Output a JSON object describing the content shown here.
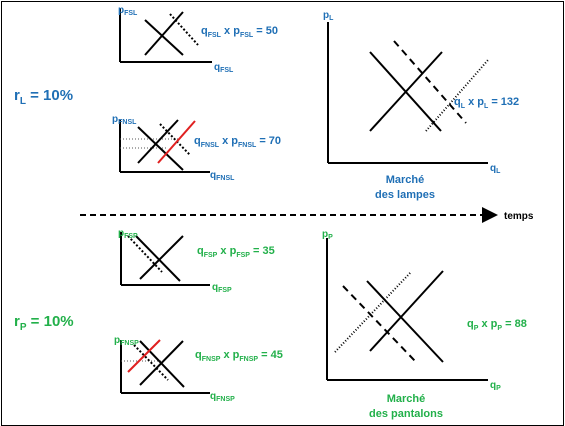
{
  "colors": {
    "blue": "#1f6fb5",
    "green": "#22b04a",
    "red": "#e02020",
    "black": "#000000"
  },
  "lamps": {
    "rate": {
      "sym": "r",
      "sub": "L",
      "rest": " = 10%"
    },
    "fsl": {
      "axis_y": {
        "sym": "p",
        "sub": "FSL"
      },
      "axis_x": {
        "sym": "q",
        "sub": "FSL"
      },
      "product": {
        "a": "q",
        "a_sub": "FSL",
        "mid": " x ",
        "b": "p",
        "b_sub": "FSL",
        "rest": " = 50"
      }
    },
    "fnsl": {
      "axis_y": {
        "sym": "p",
        "sub": "FNSL"
      },
      "axis_x": {
        "sym": "q",
        "sub": "FNSL"
      },
      "product": {
        "a": "q",
        "a_sub": "FNSL",
        "mid": " x ",
        "b": "p",
        "b_sub": "FNSL",
        "rest": " = 70"
      }
    },
    "market": {
      "axis_y": {
        "sym": "p",
        "sub": "L"
      },
      "axis_x": {
        "sym": "q",
        "sub": "L"
      },
      "product": {
        "a": "q",
        "a_sub": "L",
        "mid": " x ",
        "b": "p",
        "b_sub": "L",
        "rest": " = 132"
      },
      "caption_line1": "Marché",
      "caption_line2": "des lampes"
    }
  },
  "timeline": {
    "label": "temps"
  },
  "pants": {
    "rate": {
      "sym": "r",
      "sub": "P",
      "rest": " = 10%"
    },
    "fsp": {
      "axis_y": {
        "sym": "p",
        "sub": "FSP"
      },
      "axis_x": {
        "sym": "q",
        "sub": "FSP"
      },
      "product": {
        "a": "q",
        "a_sub": "FSP",
        "mid": " x ",
        "b": "p",
        "b_sub": "FSP",
        "rest": " = 35"
      }
    },
    "fnsp": {
      "axis_y": {
        "sym": "p",
        "sub": "FNSP"
      },
      "axis_x": {
        "sym": "q",
        "sub": "FNSP"
      },
      "product": {
        "a": "q",
        "a_sub": "FNSP",
        "mid": " x ",
        "b": "p",
        "b_sub": "FNSP",
        "rest": " = 45"
      }
    },
    "market": {
      "axis_y": {
        "sym": "p",
        "sub": "P"
      },
      "axis_x": {
        "sym": "q",
        "sub": "P"
      },
      "product": {
        "a": "q",
        "a_sub": "P",
        "mid": " x ",
        "b": "p",
        "b_sub": "P",
        "rest": " = 88"
      },
      "caption_line1": "Marché",
      "caption_line2": "des pantalons"
    }
  }
}
